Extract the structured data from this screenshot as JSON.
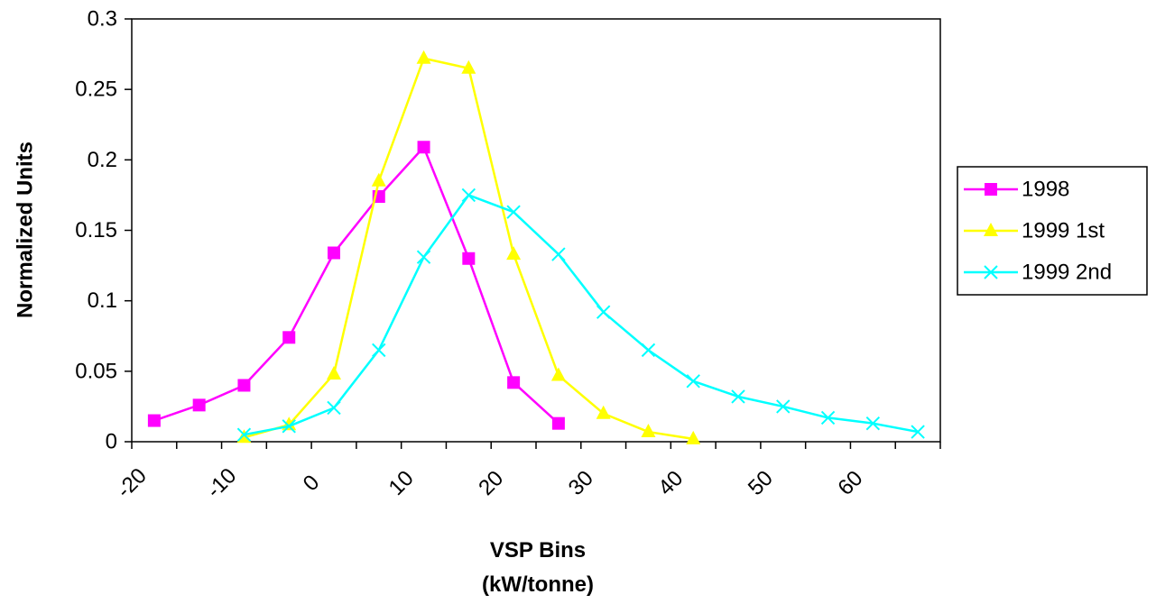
{
  "chart_data": {
    "type": "line",
    "title": "",
    "xlabel": [
      "VSP Bins",
      "(kW/tonne)"
    ],
    "ylabel": "Normalized Units",
    "ylim": [
      0,
      0.3
    ],
    "yticks": [
      "0",
      "0.05",
      "0.1",
      "0.15",
      "0.2",
      "0.25",
      "0.3"
    ],
    "xlim": [
      -20,
      70
    ],
    "xticks": [
      "-20",
      "-10",
      "0",
      "10",
      "20",
      "30",
      "40",
      "50",
      "60"
    ],
    "grid": false,
    "legend_position": "right",
    "series": [
      {
        "name": "1998",
        "color": "#ff00ff",
        "marker": "square",
        "x": [
          -17.5,
          -12.5,
          -7.5,
          -2.5,
          2.5,
          7.5,
          12.5,
          17.5,
          22.5,
          27.5
        ],
        "y": [
          0.015,
          0.026,
          0.04,
          0.074,
          0.134,
          0.174,
          0.209,
          0.13,
          0.042,
          0.013
        ]
      },
      {
        "name": "1999 1st",
        "color": "#ffff00",
        "marker": "triangle",
        "x": [
          -7.5,
          -2.5,
          2.5,
          7.5,
          12.5,
          17.5,
          22.5,
          27.5,
          32.5,
          37.5,
          42.5
        ],
        "y": [
          0.003,
          0.012,
          0.048,
          0.185,
          0.272,
          0.265,
          0.133,
          0.047,
          0.02,
          0.007,
          0.002
        ]
      },
      {
        "name": "1999 2nd",
        "color": "#00ffff",
        "marker": "x",
        "x": [
          -7.5,
          -2.5,
          2.5,
          7.5,
          12.5,
          17.5,
          22.5,
          27.5,
          32.5,
          37.5,
          42.5,
          47.5,
          52.5,
          57.5,
          62.5,
          67.5
        ],
        "y": [
          0.005,
          0.011,
          0.024,
          0.065,
          0.131,
          0.175,
          0.163,
          0.133,
          0.092,
          0.065,
          0.043,
          0.032,
          0.025,
          0.017,
          0.013,
          0.007
        ]
      }
    ]
  }
}
